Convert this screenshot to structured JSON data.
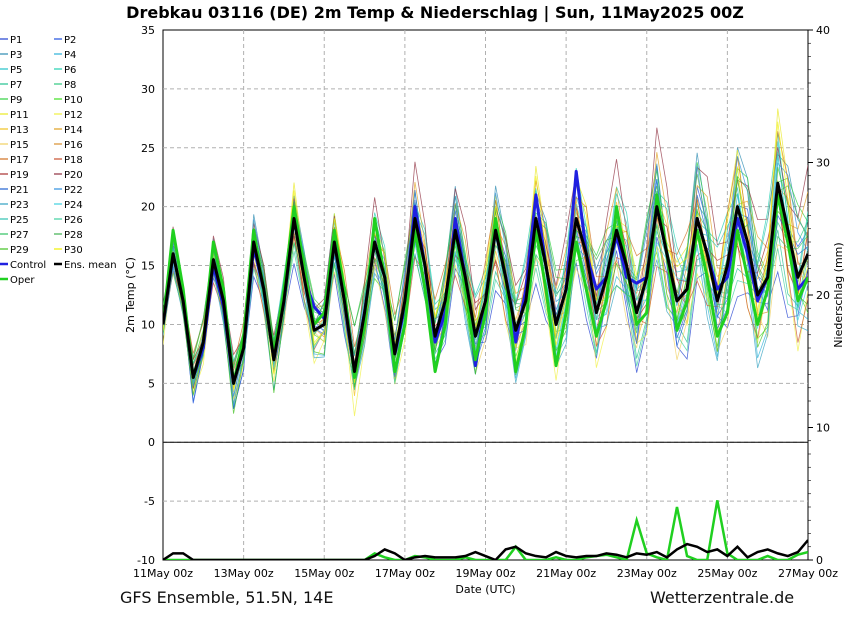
{
  "chart_data": {
    "type": "line",
    "title": "Drebkau 03116 (DE)  2m Temp & Niederschlag | Sun, 11May2025 00Z",
    "xlabel": "Date (UTC)",
    "ylabel": "2m Temp (°C)",
    "y2label": "Niederschlag (mm)",
    "ylim": [
      -10,
      35
    ],
    "yticks": [
      -10,
      -5,
      0,
      5,
      10,
      15,
      20,
      25,
      30,
      35
    ],
    "y2lim": [
      0,
      40
    ],
    "y2ticks": [
      0,
      10,
      20,
      30,
      40
    ],
    "xlim": [
      0,
      16
    ],
    "xticks": [
      0,
      2,
      4,
      6,
      8,
      10,
      12,
      14,
      16
    ],
    "xtick_labels": [
      "11May 00z",
      "13May 00z",
      "15May 00z",
      "17May 00z",
      "19May 00z",
      "21May 00z",
      "23May 00z",
      "25May 00z",
      "27May 00z"
    ],
    "x_units": "days since 11May2025 00z",
    "grid": true,
    "legend_position": "left-outside",
    "legend": [
      {
        "name": "P1",
        "color": "#1f3fd0"
      },
      {
        "name": "P2",
        "color": "#1f50e0"
      },
      {
        "name": "P3",
        "color": "#2a8ab0"
      },
      {
        "name": "P4",
        "color": "#2ab0d8"
      },
      {
        "name": "P5",
        "color": "#20c0c8"
      },
      {
        "name": "P6",
        "color": "#20d0b0"
      },
      {
        "name": "P7",
        "color": "#20c090"
      },
      {
        "name": "P8",
        "color": "#30c880"
      },
      {
        "name": "P9",
        "color": "#30d040"
      },
      {
        "name": "P10",
        "color": "#40e020"
      },
      {
        "name": "P11",
        "color": "#e8e820"
      },
      {
        "name": "P12",
        "color": "#f0f040"
      },
      {
        "name": "P13",
        "color": "#f0c020"
      },
      {
        "name": "P14",
        "color": "#e0a020"
      },
      {
        "name": "P15",
        "color": "#f0d060"
      },
      {
        "name": "P16",
        "color": "#d89030"
      },
      {
        "name": "P17",
        "color": "#d07020"
      },
      {
        "name": "P18",
        "color": "#c85030"
      },
      {
        "name": "P19",
        "color": "#a83030"
      },
      {
        "name": "P20",
        "color": "#903040"
      },
      {
        "name": "P21",
        "color": "#2060d0"
      },
      {
        "name": "P22",
        "color": "#3090e0"
      },
      {
        "name": "P23",
        "color": "#30a0c0"
      },
      {
        "name": "P24",
        "color": "#40d0e0"
      },
      {
        "name": "P25",
        "color": "#30c0b0"
      },
      {
        "name": "P26",
        "color": "#40d0a0"
      },
      {
        "name": "P27",
        "color": "#30c060"
      },
      {
        "name": "P28",
        "color": "#40b050"
      },
      {
        "name": "P29",
        "color": "#40c020"
      },
      {
        "name": "P30",
        "color": "#f0f000"
      },
      {
        "name": "Control",
        "color": "#2020e0"
      },
      {
        "name": "Ens. mean",
        "color": "#000000"
      },
      {
        "name": "Oper",
        "color": "#20d020"
      }
    ],
    "x": [
      0,
      0.25,
      0.5,
      0.75,
      1,
      1.25,
      1.5,
      1.75,
      2,
      2.25,
      2.5,
      2.75,
      3,
      3.25,
      3.5,
      3.75,
      4,
      4.25,
      4.5,
      4.75,
      5,
      5.25,
      5.5,
      5.75,
      6,
      6.25,
      6.5,
      6.75,
      7,
      7.25,
      7.5,
      7.75,
      8,
      8.25,
      8.5,
      8.75,
      9,
      9.25,
      9.5,
      9.75,
      10,
      10.25,
      10.5,
      10.75,
      11,
      11.25,
      11.5,
      11.75,
      12,
      12.25,
      12.5,
      12.75,
      13,
      13.25,
      13.5,
      13.75,
      14,
      14.25,
      14.5,
      14.75,
      15,
      15.25,
      15.5,
      15.75,
      16
    ],
    "series": [
      {
        "name": "Ens. mean",
        "values": [
          10,
          16,
          12,
          5.5,
          8.5,
          15.5,
          12,
          5,
          8,
          17,
          13,
          7,
          12,
          19,
          14,
          9.5,
          10,
          17,
          12,
          6,
          11,
          17,
          14,
          7.5,
          12,
          19,
          15,
          9,
          12,
          18,
          14,
          9,
          12,
          18,
          14,
          9.5,
          12,
          19,
          15,
          10,
          13,
          19,
          16,
          11,
          14,
          18,
          15,
          11,
          14,
          20,
          16,
          12,
          13,
          19,
          16,
          12,
          15,
          20,
          17,
          12.5,
          14,
          22,
          18,
          14,
          16
        ]
      },
      {
        "name": "Control",
        "values": [
          10,
          16,
          12,
          5.5,
          8,
          15,
          11.5,
          5,
          8,
          16.5,
          13,
          7,
          12,
          19,
          14,
          11.5,
          10.5,
          17,
          12,
          6,
          11,
          17,
          14,
          7.5,
          11.5,
          20,
          15,
          8.5,
          11,
          19,
          14,
          6.5,
          12,
          18,
          14,
          8.5,
          13,
          21,
          15,
          10,
          13,
          23,
          16,
          13,
          14,
          17.5,
          14,
          13.5,
          14,
          20,
          16,
          12,
          13,
          19,
          16,
          13,
          14,
          19,
          16,
          12,
          14,
          21,
          17,
          13,
          14
        ]
      },
      {
        "name": "Oper",
        "values": [
          10,
          18,
          13,
          5.5,
          8.5,
          17,
          13,
          5,
          9,
          18,
          13,
          7.5,
          13,
          20,
          15,
          10,
          11,
          18,
          13,
          5.5,
          10,
          19,
          14,
          6,
          10,
          18,
          13,
          6,
          10,
          18,
          13,
          7,
          11,
          19,
          14,
          6,
          10,
          18,
          13,
          6.5,
          11,
          17,
          13,
          9,
          12,
          20,
          15,
          10,
          11,
          21,
          16,
          9.5,
          12,
          18,
          14,
          9,
          11,
          18,
          14,
          10,
          13,
          21,
          17,
          12,
          14
        ]
      }
    ],
    "precip_mean_mm": [
      0,
      0.5,
      0.5,
      0,
      0,
      0,
      0,
      0,
      0,
      0,
      0,
      0,
      0,
      0,
      0,
      0,
      0,
      0,
      0,
      0,
      0,
      0.3,
      0.8,
      0.5,
      0,
      0.2,
      0.3,
      0.2,
      0.2,
      0.2,
      0.3,
      0.6,
      0.3,
      0,
      0.8,
      1,
      0.5,
      0.3,
      0.2,
      0.6,
      0.3,
      0.2,
      0.3,
      0.3,
      0.5,
      0.4,
      0.2,
      0.5,
      0.4,
      0.6,
      0.2,
      0.8,
      1.2,
      1,
      0.6,
      0.8,
      0.3,
      1,
      0.2,
      0.6,
      0.8,
      0.5,
      0.3,
      0.6,
      1.5
    ],
    "precip_oper_mm": [
      0,
      0,
      0,
      0,
      0,
      0,
      0,
      0,
      0,
      0,
      0,
      0,
      0,
      0,
      0,
      0,
      0,
      0,
      0,
      0,
      0,
      0.5,
      0.2,
      0,
      0,
      0.3,
      0.2,
      0,
      0,
      0,
      0.2,
      0,
      0,
      0,
      0,
      1,
      0,
      0,
      0,
      0.2,
      0,
      0,
      0.2,
      0.3,
      0.4,
      0.2,
      0,
      3,
      0.5,
      0.2,
      0,
      4,
      0.3,
      0,
      0,
      4.5,
      0.5,
      0,
      0,
      0,
      0.3,
      0,
      0,
      0.4,
      0.6
    ]
  },
  "footer": {
    "source": "GFS Ensemble, 51.5N, 14E",
    "site": "Wetterzentrale.de"
  }
}
